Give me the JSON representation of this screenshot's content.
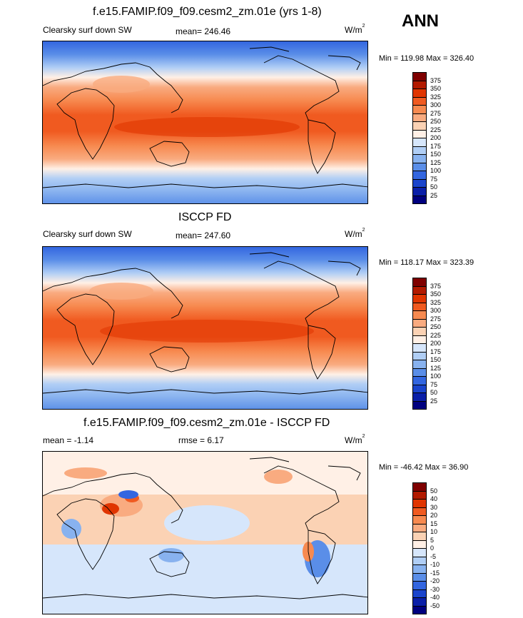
{
  "season": "ANN",
  "panels": [
    {
      "title": "f.e15.FAMIP.f09_f09.cesm2_zm.01e (yrs 1-8)",
      "variable": "Clearsky surf down SW",
      "stat": "mean= 246.46",
      "units_base": "W/m",
      "units_exp": "2",
      "minmax": "Min = 119.98 Max = 326.40",
      "colorbar": {
        "labels": [
          "375",
          "350",
          "325",
          "300",
          "275",
          "250",
          "225",
          "200",
          "175",
          "150",
          "125",
          "100",
          "75",
          "50",
          "25"
        ],
        "colors": [
          "#7f0000",
          "#b21a00",
          "#e03500",
          "#f05a20",
          "#f78a50",
          "#f9ab80",
          "#fbd2b4",
          "#fff0e6",
          "#d6e6fb",
          "#b0cef5",
          "#88b2ef",
          "#5a8ee8",
          "#3366e0",
          "#1a44cc",
          "#0a1fa8",
          "#00007f"
        ]
      }
    },
    {
      "title": "ISCCP FD",
      "variable": "Clearsky surf down SW",
      "stat": "mean= 247.60",
      "units_base": "W/m",
      "units_exp": "2",
      "minmax": "Min = 118.17 Max = 323.39",
      "colorbar": {
        "labels": [
          "375",
          "350",
          "325",
          "300",
          "275",
          "250",
          "225",
          "200",
          "175",
          "150",
          "125",
          "100",
          "75",
          "50",
          "25"
        ],
        "colors": [
          "#7f0000",
          "#b21a00",
          "#e03500",
          "#f05a20",
          "#f78a50",
          "#f9ab80",
          "#fbd2b4",
          "#fff0e6",
          "#d6e6fb",
          "#b0cef5",
          "#88b2ef",
          "#5a8ee8",
          "#3366e0",
          "#1a44cc",
          "#0a1fa8",
          "#00007f"
        ]
      }
    },
    {
      "title": "f.e15.FAMIP.f09_f09.cesm2_zm.01e - ISCCP FD",
      "stat": "mean =  -1.14",
      "rmse": "rmse =   6.17",
      "units_base": "W/m",
      "units_exp": "2",
      "minmax": "Min = -46.42 Max =  36.90",
      "colorbar": {
        "labels": [
          "50",
          "40",
          "30",
          "20",
          "15",
          "10",
          "5",
          "0",
          "-5",
          "-10",
          "-15",
          "-20",
          "-30",
          "-40",
          "-50"
        ],
        "colors": [
          "#7f0000",
          "#b21a00",
          "#e03500",
          "#f05a20",
          "#f78a50",
          "#f9ab80",
          "#fbd2b4",
          "#fff0e6",
          "#d6e6fb",
          "#b0cef5",
          "#88b2ef",
          "#5a8ee8",
          "#3366e0",
          "#1a44cc",
          "#0a1fa8",
          "#00007f"
        ]
      }
    }
  ]
}
